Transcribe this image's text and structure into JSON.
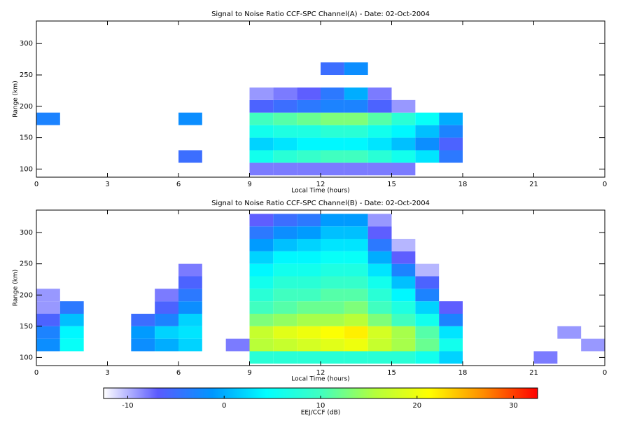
{
  "chart_data": [
    {
      "type": "heatmap",
      "title": "Signal to Noise Ratio CCF-SPC Channel(A) - Date: 02-Oct-2004",
      "x_label": "Local Time (hours)",
      "y_label": "Range (km)",
      "xlim": [
        0,
        24
      ],
      "xticks": [
        0,
        3,
        6,
        9,
        12,
        15,
        18,
        21,
        {
          "value": 24,
          "label": "0"
        }
      ],
      "ylim": [
        87,
        336
      ],
      "yticks": [
        100,
        150,
        200,
        250,
        300
      ],
      "xbins": [
        0,
        1,
        2,
        3,
        4,
        5,
        6,
        7,
        8,
        9,
        10,
        11,
        12,
        13,
        14,
        15,
        16,
        17,
        18,
        19,
        20,
        21,
        22,
        23,
        24
      ],
      "ybins": [
        90,
        110,
        130,
        150,
        170,
        190,
        210,
        230,
        250,
        270,
        290,
        310,
        330
      ],
      "z": [
        [
          null,
          null,
          null,
          null,
          null,
          null,
          null,
          null,
          null,
          -8,
          -8,
          -8,
          -8,
          -8,
          -8,
          -8,
          null,
          null,
          null,
          null,
          null,
          null,
          null,
          null
        ],
        [
          null,
          null,
          null,
          null,
          null,
          null,
          -5,
          null,
          null,
          6,
          8,
          9,
          10,
          10,
          8,
          6,
          3,
          -4,
          null,
          null,
          null,
          null,
          null,
          null
        ],
        [
          null,
          null,
          null,
          null,
          null,
          null,
          null,
          null,
          null,
          2,
          3,
          4,
          4,
          4,
          3,
          1,
          -2,
          -6,
          null,
          null,
          null,
          null,
          null,
          null
        ],
        [
          null,
          null,
          null,
          null,
          null,
          null,
          null,
          null,
          null,
          6,
          7,
          7,
          8,
          8,
          6,
          4,
          1,
          -3,
          null,
          null,
          null,
          null,
          null,
          null
        ],
        [
          -3,
          null,
          null,
          null,
          null,
          null,
          -2,
          null,
          null,
          10,
          11,
          12,
          13,
          13,
          11,
          8,
          5,
          0,
          null,
          null,
          null,
          null,
          null,
          null
        ],
        [
          null,
          null,
          null,
          null,
          null,
          null,
          null,
          null,
          null,
          -6,
          -5,
          -4,
          -3,
          -3,
          -6,
          -9,
          null,
          null,
          null,
          null,
          null,
          null,
          null,
          null
        ],
        [
          null,
          null,
          null,
          null,
          null,
          null,
          null,
          null,
          null,
          -9,
          -8,
          -7,
          -4,
          0,
          -8,
          null,
          null,
          null,
          null,
          null,
          null,
          null,
          null,
          null
        ],
        [
          null,
          null,
          null,
          null,
          null,
          null,
          null,
          null,
          null,
          null,
          null,
          null,
          null,
          null,
          null,
          null,
          null,
          null,
          null,
          null,
          null,
          null,
          null,
          null
        ],
        [
          null,
          null,
          null,
          null,
          null,
          null,
          null,
          null,
          null,
          null,
          null,
          null,
          -5,
          -2,
          null,
          null,
          null,
          null,
          null,
          null,
          null,
          null,
          null,
          null
        ],
        [
          null,
          null,
          null,
          null,
          null,
          null,
          null,
          null,
          null,
          null,
          null,
          null,
          null,
          null,
          null,
          null,
          null,
          null,
          null,
          null,
          null,
          null,
          null,
          null
        ],
        [
          null,
          null,
          null,
          null,
          null,
          null,
          null,
          null,
          null,
          null,
          null,
          null,
          null,
          null,
          null,
          null,
          null,
          null,
          null,
          null,
          null,
          null,
          null,
          null
        ],
        [
          null,
          null,
          null,
          null,
          null,
          null,
          null,
          null,
          null,
          null,
          null,
          null,
          null,
          null,
          null,
          null,
          null,
          null,
          null,
          null,
          null,
          null,
          null,
          null
        ]
      ]
    },
    {
      "type": "heatmap",
      "title": "Signal to Noise Ratio CCF-SPC Channel(B) - Date: 02-Oct-2004",
      "x_label": "Local Time (hours)",
      "y_label": "Range (km)",
      "xlim": [
        0,
        24
      ],
      "xticks": [
        0,
        3,
        6,
        9,
        12,
        15,
        18,
        21,
        {
          "value": 24,
          "label": "0"
        }
      ],
      "ylim": [
        87,
        336
      ],
      "yticks": [
        100,
        150,
        200,
        250,
        300
      ],
      "xbins": [
        0,
        1,
        2,
        3,
        4,
        5,
        6,
        7,
        8,
        9,
        10,
        11,
        12,
        13,
        14,
        15,
        16,
        17,
        18,
        19,
        20,
        21,
        22,
        23,
        24
      ],
      "ybins": [
        90,
        110,
        130,
        150,
        170,
        190,
        210,
        230,
        250,
        270,
        290,
        310,
        330
      ],
      "z": [
        [
          null,
          null,
          null,
          null,
          null,
          null,
          null,
          null,
          null,
          8,
          8,
          8,
          8,
          8,
          8,
          8,
          6,
          2,
          null,
          null,
          null,
          -8,
          null,
          null
        ],
        [
          -2,
          5,
          null,
          null,
          -2,
          0,
          2,
          null,
          -8,
          16,
          17,
          18,
          19,
          20,
          17,
          15,
          12,
          6,
          null,
          null,
          null,
          null,
          null,
          -9
        ],
        [
          -3,
          4,
          null,
          null,
          -1,
          2,
          3,
          null,
          null,
          17,
          19,
          20,
          21,
          22,
          18,
          15,
          11,
          3,
          null,
          null,
          null,
          null,
          -9,
          null
        ],
        [
          -6,
          1,
          null,
          null,
          -5,
          -3,
          2,
          null,
          null,
          13,
          14,
          15,
          15,
          16,
          13,
          10,
          6,
          -3,
          null,
          null,
          null,
          null,
          null,
          null
        ],
        [
          -9,
          -4,
          null,
          null,
          null,
          -6,
          -2,
          null,
          null,
          10,
          11,
          12,
          12,
          13,
          10,
          7,
          2,
          -7,
          null,
          null,
          null,
          null,
          null,
          null
        ],
        [
          -9,
          null,
          null,
          null,
          null,
          -8,
          -4,
          null,
          null,
          8,
          10,
          10,
          11,
          11,
          8,
          4,
          -3,
          null,
          null,
          null,
          null,
          null,
          null,
          null
        ],
        [
          null,
          null,
          null,
          null,
          null,
          null,
          -6,
          null,
          null,
          6,
          8,
          8,
          9,
          9,
          6,
          1,
          -6,
          null,
          null,
          null,
          null,
          null,
          null,
          null
        ],
        [
          null,
          null,
          null,
          null,
          null,
          null,
          -8,
          null,
          null,
          4,
          6,
          6,
          7,
          7,
          3,
          -3,
          -10,
          null,
          null,
          null,
          null,
          null,
          null,
          null
        ],
        [
          null,
          null,
          null,
          null,
          null,
          null,
          null,
          null,
          null,
          2,
          4,
          4,
          5,
          5,
          0,
          -7,
          null,
          null,
          null,
          null,
          null,
          null,
          null,
          null
        ],
        [
          null,
          null,
          null,
          null,
          null,
          null,
          null,
          null,
          null,
          -1,
          1,
          2,
          3,
          3,
          -4,
          -10,
          null,
          null,
          null,
          null,
          null,
          null,
          null,
          null
        ],
        [
          null,
          null,
          null,
          null,
          null,
          null,
          null,
          null,
          null,
          -4,
          -2,
          -1,
          1,
          1,
          -7,
          null,
          null,
          null,
          null,
          null,
          null,
          null,
          null,
          null
        ],
        [
          null,
          null,
          null,
          null,
          null,
          null,
          null,
          null,
          null,
          -7,
          -5,
          -4,
          -1,
          -1,
          -9,
          null,
          null,
          null,
          null,
          null,
          null,
          null,
          null,
          null
        ]
      ]
    }
  ],
  "colorbar": {
    "label": "EEJ/CCF (dB)",
    "clim": [
      -12.5,
      32.5
    ],
    "ticks": [
      -10,
      0,
      10,
      20,
      30
    ],
    "colorscale": [
      "#ffffff",
      "#5a5aff",
      "#0096ff",
      "#00ffff",
      "#40ffc0",
      "#b4ff3c",
      "#ffff00",
      "#ff8c00",
      "#ff0000"
    ]
  }
}
